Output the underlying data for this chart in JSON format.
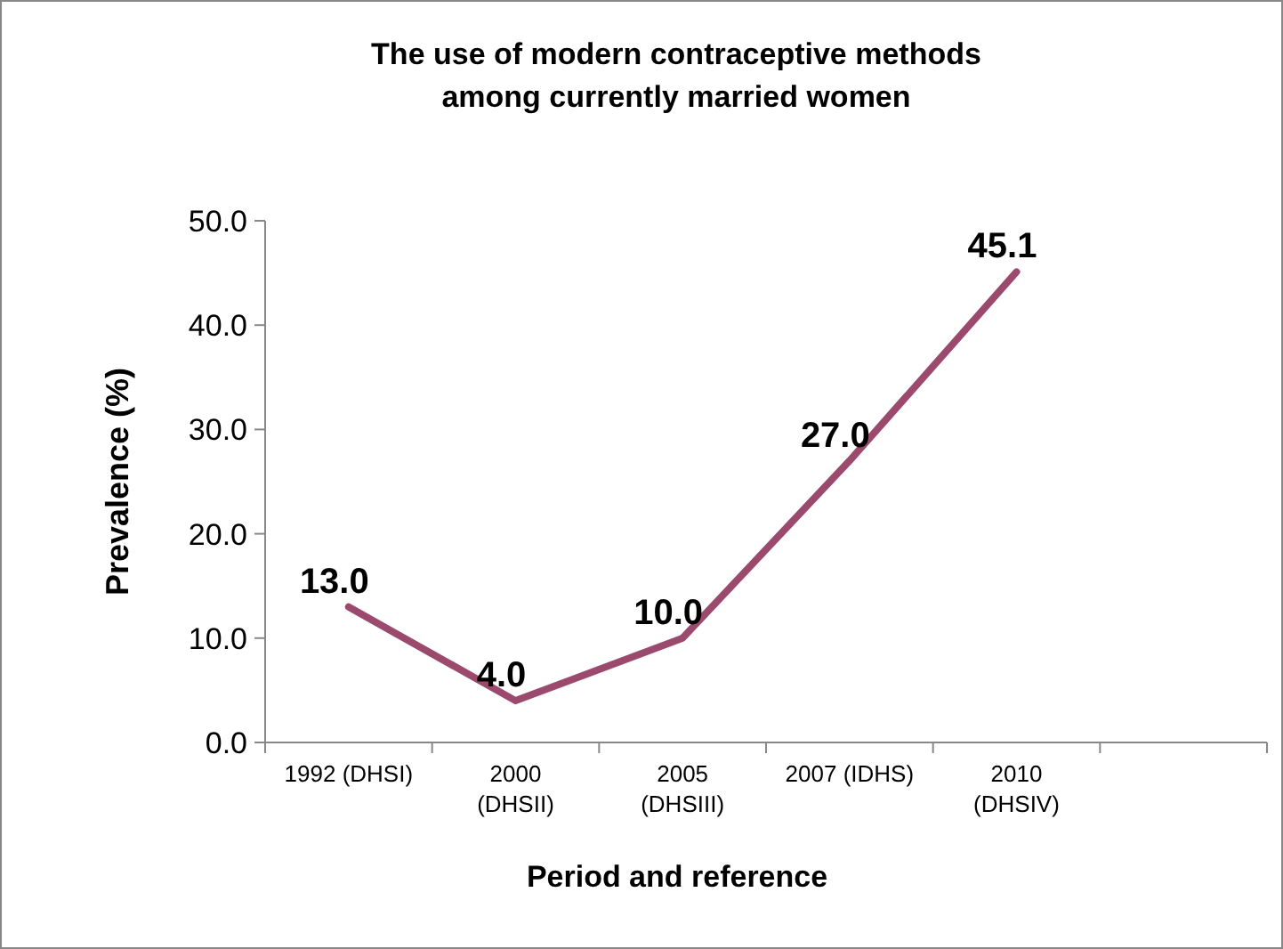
{
  "chart_data": {
    "type": "line",
    "title": "The use of modern contraceptive methods\namong currently married women",
    "xlabel": "Period and reference",
    "ylabel": "Prevalence (%)",
    "categories": [
      "1992 (DHSI)",
      "2000\n(DHSII)",
      "2005\n(DHSIII)",
      "2007 (IDHS)",
      "2010\n(DHSIV)",
      null
    ],
    "series": [
      {
        "color": "#9b4a6e",
        "values": [
          13.0,
          4.0,
          10.0,
          27.0,
          45.1,
          null
        ],
        "value_labels": [
          "13.0",
          "4.0",
          "10.0",
          "27.0",
          "45.1",
          null
        ]
      }
    ],
    "ylim": [
      0,
      50
    ],
    "yticks": [
      {
        "value": 0,
        "label": "0.0"
      },
      {
        "value": 10,
        "label": "10.0"
      },
      {
        "value": 20,
        "label": "20.0"
      },
      {
        "value": 30,
        "label": "30.0"
      },
      {
        "value": 40,
        "label": "40.0"
      },
      {
        "value": 50,
        "label": "50.0"
      }
    ],
    "marker": "none",
    "line_style": "solid",
    "grid": false
  }
}
